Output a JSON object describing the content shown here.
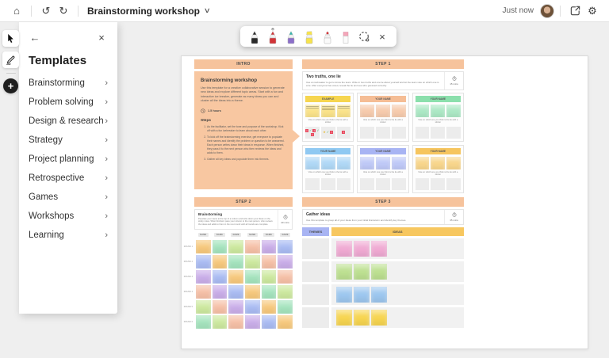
{
  "topbar": {
    "title": "Brainstorming workshop",
    "status": "Just now"
  },
  "glyphs": {
    "home": "⌂",
    "undo": "↺",
    "redo": "↻",
    "chevron_down": "∨",
    "gear": "⚙",
    "back": "←",
    "close": "×",
    "chevron_right": "›",
    "star": "★",
    "check": "✓",
    "cross": "×",
    "plus": "+"
  },
  "palette": {
    "peach": "#F6C39C",
    "intro_card": "#F8C7A1",
    "themes_hdr": "#A8B4F3",
    "ideas_hdr": "#F7C75F"
  },
  "templates": {
    "heading": "Templates",
    "items": [
      "Brainstorming",
      "Problem solving",
      "Design & research",
      "Strategy",
      "Project planning",
      "Retrospective",
      "Games",
      "Workshops",
      "Learning"
    ]
  },
  "pen_toolbar": {
    "tools": [
      {
        "name": "black-pen",
        "type": "marker",
        "tip": "#2b2b2b",
        "band": "#2b2b2b"
      },
      {
        "name": "red-pen",
        "type": "marker",
        "tip": "#d13438",
        "band": "#d13438",
        "raised": true
      },
      {
        "name": "galaxy-pen",
        "type": "marker",
        "tip": "#35b5ac",
        "band": "#8b6fc9"
      },
      {
        "name": "highlighter",
        "type": "marker",
        "tip": "#f7e34c",
        "band": "#f7e34c",
        "wide": true
      },
      {
        "name": "arrow-pen",
        "type": "marker",
        "tip": "#efefef",
        "band": "#fafafa",
        "dot": "#d13438"
      },
      {
        "name": "eraser",
        "type": "eraser",
        "top": "#f4a6b9",
        "body": "#fbfbfb"
      },
      {
        "name": "lasso-select-tool",
        "type": "lasso"
      },
      {
        "name": "close-toolbar",
        "type": "close"
      }
    ]
  },
  "canvas": {
    "intro": {
      "header": "INTRO",
      "title": "Brainstorming workshop",
      "body": "Use this template for a creative collaborative session to generate new ideas and explore different topic areas. Start with a fun and interactive ice breaker, generate as many ideas you can and cluster all the ideas into a theme.",
      "duration": "1.5 hours",
      "steps_label": "Steps",
      "steps": [
        "As the facilitator, set the tone and purpose of the workshop. Kick off with a fun icebreaker to learn about each other.",
        "To kick off the brainstorming exercise, get everyone to populate their names and identify the problem or question to be answered. Each person writes down their ideas in response. When finished, they pass it to the next person who then reviews the ideas and adds to them.",
        "Gather all key ideas and populate them into themes."
      ]
    },
    "step1": {
      "header": "STEP 1",
      "card": {
        "title": "Two truths, one lie",
        "body": "Use an icebreaker to get to know the team. Write in two truths and one lie about yourself and let the team vote on which one is a lie. After everyone has voted, reveal the lie and see who guessed correctly.",
        "duration": "15 mins"
      },
      "caption": "Vote on which one you think is the lie with a sticker",
      "boards": [
        {
          "label": "EXAMPLE",
          "header": "#F6D54F",
          "sticky": "#FAE38A",
          "example": true
        },
        {
          "label": "YOUR NAME",
          "header": "#F5BD95",
          "sticky": "#F6CBAD"
        },
        {
          "label": "YOUR NAME",
          "header": "#8BDFAC",
          "sticky": "#ACE8C5"
        },
        {
          "label": "YOUR NAME",
          "header": "#90C9F2",
          "sticky": "#B0D8F6"
        },
        {
          "label": "YOUR NAME",
          "header": "#A8B4F3",
          "sticky": "#BFC9F7"
        },
        {
          "label": "YOUR NAME",
          "header": "#F6C55E",
          "sticky": "#F8D68C"
        }
      ],
      "example_stamps": [
        [
          "x",
          "check",
          "x",
          "check",
          "x"
        ],
        [
          "star",
          "check",
          "x"
        ],
        [
          "x"
        ]
      ]
    },
    "step2": {
      "header": "STEP 2",
      "card": {
        "title": "Brainstorming",
        "body": "Populate your name at the top of a column and write down your ideas on the sticky notes. When finished, pass your column to the next person, who reviews the ideas and adds to them in the next round until all rounds are complete.",
        "duration": "40 mins"
      },
      "name_chip": "NAME",
      "rounds": [
        "ROUND 1",
        "ROUND 2",
        "ROUND 3",
        "ROUND 4",
        "ROUND 5",
        "ROUND 6"
      ],
      "colors": {
        "O": "#F7C97D",
        "G": "#A5E4BE",
        "L": "#CDE99F",
        "S": "#F6C0A7",
        "P": "#CAAEE9",
        "B": "#AABCF3"
      },
      "grid": [
        "OGLSPB",
        "BOGLSP",
        "PBOGLS",
        "SPBOGL",
        "LSPBOG",
        "GLSPBO"
      ]
    },
    "step3": {
      "header": "STEP 3",
      "card": {
        "title": "Gather ideas",
        "body": "Use this template to group all of your ideas from your initial brainstorm and identify key themes.",
        "duration": "35 mins"
      },
      "columns": {
        "themes": "THEMES",
        "ideas": "IDEAS"
      },
      "rows": [
        {
          "sticky": "#F0AAD3",
          "count": 3
        },
        {
          "sticky": "#BDE091",
          "count": 3
        },
        {
          "sticky": "#9DC7EF",
          "count": 3
        },
        {
          "sticky": "#F7D550",
          "count": 3
        }
      ]
    }
  }
}
